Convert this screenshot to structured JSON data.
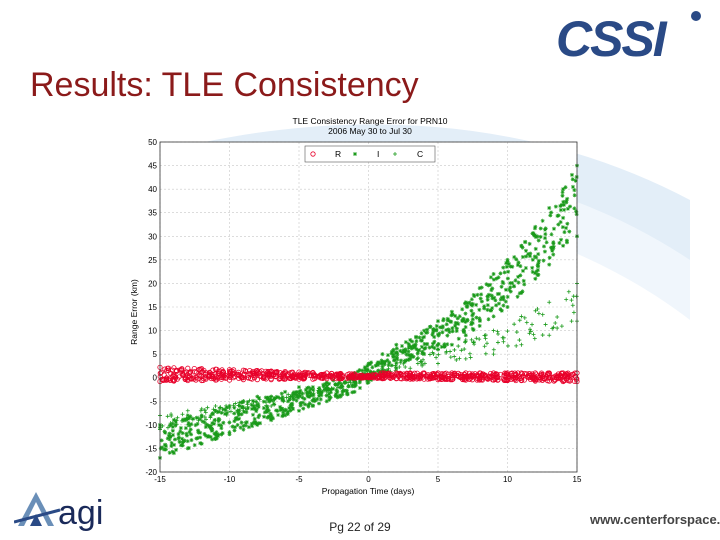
{
  "slide": {
    "title": "Results: TLE Consistency",
    "page_number": "Pg 22 of 29",
    "website": "www.centerforspace.com",
    "logo_left_text": "agi",
    "logo_right_text": "CSSI"
  },
  "colors": {
    "title": "#8b1a1a",
    "series_R": "#e8002a",
    "series_I": "#1a9a1a",
    "series_C": "#1a9a1a",
    "logo_blue": "#2a4a86"
  },
  "chart_data": {
    "type": "scatter",
    "title": "TLE Consistency Range Error for PRN10",
    "subtitle": "2006 May 30 to Jul 30",
    "xlabel": "Propagation Time (days)",
    "ylabel": "Range Error (km)",
    "xlim": [
      -15,
      15
    ],
    "ylim": [
      -20,
      50
    ],
    "xticks": [
      -15,
      -10,
      -5,
      0,
      5,
      10,
      15
    ],
    "yticks": [
      -20,
      -15,
      -10,
      -5,
      0,
      5,
      10,
      15,
      20,
      25,
      30,
      35,
      40,
      45,
      50
    ],
    "grid": true,
    "legend_position": "top-center",
    "series": [
      {
        "name": "R",
        "marker": "o",
        "color": "#e8002a",
        "x": [
          -15,
          -14,
          -13,
          -12,
          -11,
          -10,
          -9,
          -8,
          -7,
          -6,
          -5,
          -4,
          -3,
          -2,
          -1,
          0,
          1,
          2,
          3,
          4,
          5,
          6,
          7,
          8,
          9,
          10,
          11,
          12,
          13,
          14,
          15
        ],
        "y_low": [
          -0.8,
          -0.7,
          -0.6,
          -0.6,
          -0.5,
          -0.5,
          -0.4,
          -0.4,
          -0.4,
          -0.3,
          -0.3,
          -0.3,
          -0.2,
          -0.2,
          -0.1,
          0,
          -0.2,
          -0.2,
          -0.3,
          -0.3,
          -0.4,
          -0.4,
          -0.5,
          -0.5,
          -0.5,
          -0.6,
          -0.6,
          -0.7,
          -0.7,
          -0.8,
          -0.8
        ],
        "y_high": [
          2.2,
          2.1,
          2.0,
          1.9,
          1.8,
          1.7,
          1.6,
          1.5,
          1.4,
          1.3,
          1.2,
          1.1,
          1.0,
          0.9,
          0.8,
          0.5,
          1.0,
          1.0,
          1.0,
          1.0,
          1.0,
          1.0,
          1.0,
          1.0,
          1.0,
          1.0,
          1.0,
          1.0,
          1.0,
          1.0,
          1.0
        ]
      },
      {
        "name": "I",
        "marker": "*",
        "color": "#1a9a1a",
        "x": [
          -15,
          -14,
          -13,
          -12,
          -11,
          -10,
          -9,
          -8,
          -7,
          -6,
          -5,
          -4,
          -3,
          -2,
          -1,
          0,
          1,
          2,
          3,
          4,
          5,
          6,
          7,
          8,
          9,
          10,
          11,
          12,
          13,
          14,
          15
        ],
        "y_low": [
          -17,
          -16,
          -15,
          -14,
          -13,
          -12,
          -11,
          -10,
          -9,
          -8,
          -7,
          -6,
          -5,
          -4,
          -3,
          -1,
          1,
          2,
          4,
          5,
          6,
          7,
          9,
          11,
          13,
          15,
          18,
          21,
          24,
          28,
          30
        ],
        "y_high": [
          -10,
          -9,
          -8,
          -8,
          -7,
          -6,
          -5,
          -4,
          -4,
          -3,
          -2,
          -2,
          -1,
          0,
          1,
          3,
          5,
          7,
          8,
          10,
          12,
          14,
          16,
          19,
          22,
          25,
          28,
          32,
          36,
          40,
          45
        ]
      },
      {
        "name": "C",
        "marker": "+",
        "color": "#1a9a1a",
        "x": [
          -15,
          -13,
          -11,
          -9,
          -7,
          -5,
          -3,
          -1,
          1,
          3,
          5,
          7,
          9,
          11,
          13,
          15
        ],
        "y_low": [
          -11,
          -10,
          -9,
          -7,
          -6,
          -4,
          -3,
          -1,
          1,
          2,
          3,
          4,
          5,
          7,
          9,
          12
        ],
        "y_high": [
          -8,
          -7,
          -6,
          -5,
          -4,
          -3,
          -2,
          0,
          2,
          4,
          6,
          8,
          10,
          13,
          16,
          20
        ]
      }
    ]
  }
}
